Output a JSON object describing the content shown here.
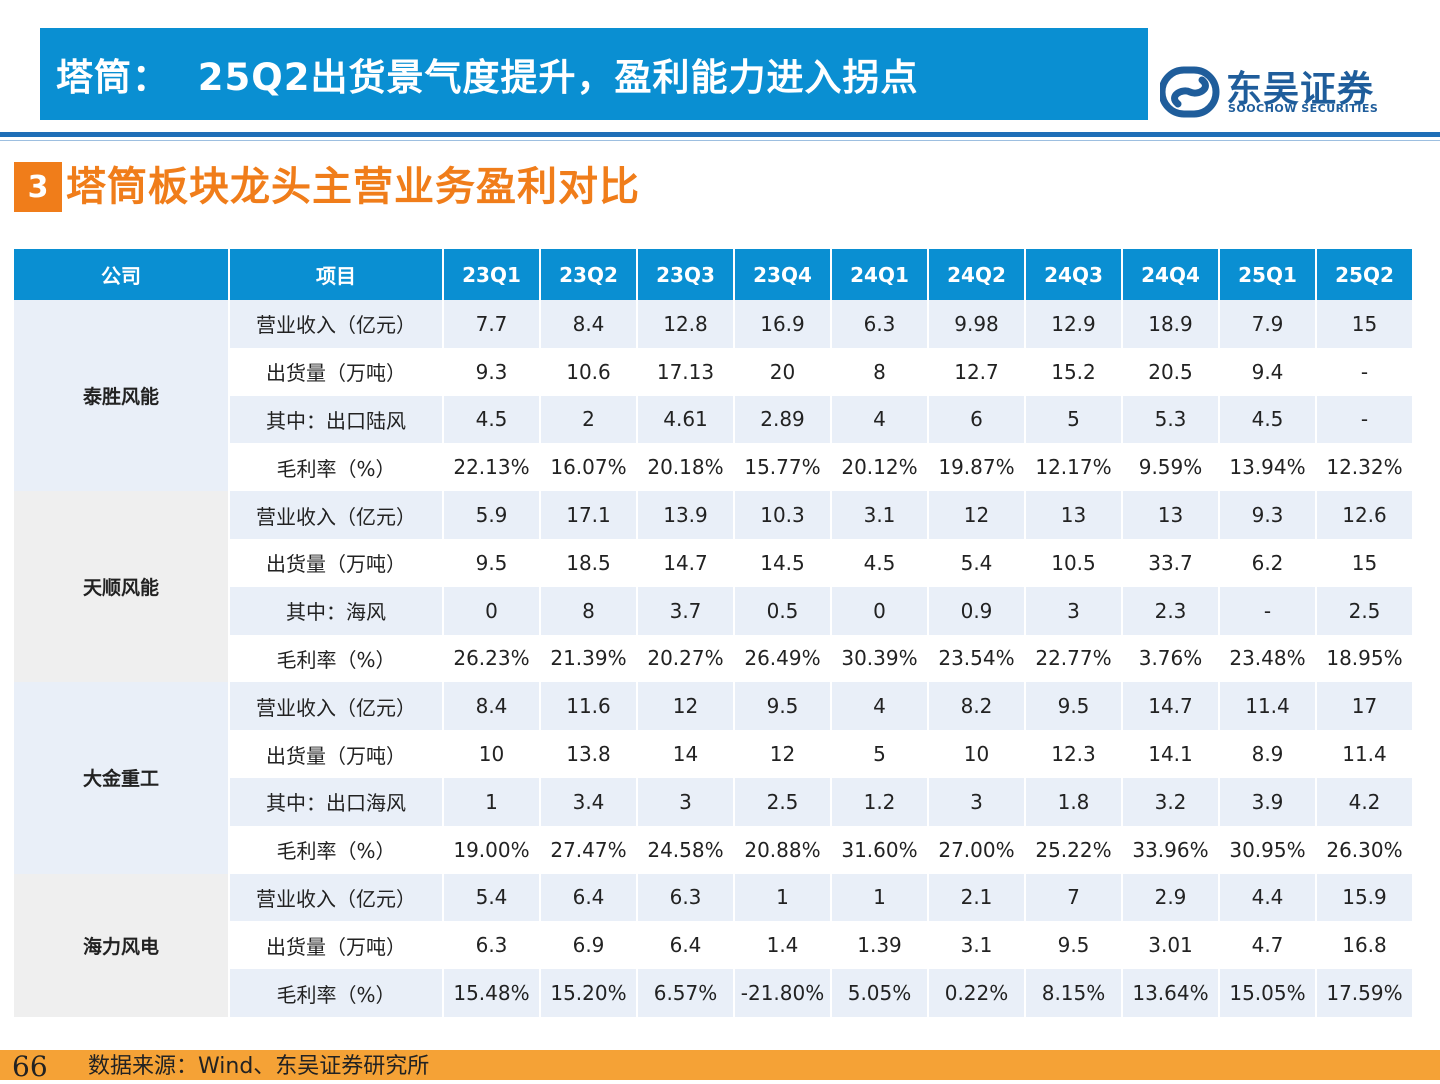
{
  "header": {
    "title": "塔筒：  25Q2出货景气度提升，盈利能力进入拐点",
    "logo_cn": "东吴证券",
    "logo_en": "SOOCHOW SECURITIES"
  },
  "section": {
    "number": "3",
    "title": "塔筒板块龙头主营业务盈利对比"
  },
  "table": {
    "headers": [
      "公司",
      "项目",
      "23Q1",
      "23Q2",
      "23Q3",
      "23Q4",
      "24Q1",
      "24Q2",
      "24Q3",
      "24Q4",
      "25Q1",
      "25Q2"
    ],
    "groups": [
      {
        "company": "泰胜风能",
        "rows": [
          {
            "item": "营业收入（亿元）",
            "values": [
              "7.7",
              "8.4",
              "12.8",
              "16.9",
              "6.3",
              "9.98",
              "12.9",
              "18.9",
              "7.9",
              "15"
            ]
          },
          {
            "item": "出货量（万吨）",
            "values": [
              "9.3",
              "10.6",
              "17.13",
              "20",
              "8",
              "12.7",
              "15.2",
              "20.5",
              "9.4",
              "-"
            ]
          },
          {
            "item": "其中：出口陆风",
            "values": [
              "4.5",
              "2",
              "4.61",
              "2.89",
              "4",
              "6",
              "5",
              "5.3",
              "4.5",
              "-"
            ]
          },
          {
            "item": "毛利率（%）",
            "values": [
              "22.13%",
              "16.07%",
              "20.18%",
              "15.77%",
              "20.12%",
              "19.87%",
              "12.17%",
              "9.59%",
              "13.94%",
              "12.32%"
            ]
          }
        ]
      },
      {
        "company": "天顺风能",
        "rows": [
          {
            "item": "营业收入（亿元）",
            "values": [
              "5.9",
              "17.1",
              "13.9",
              "10.3",
              "3.1",
              "12",
              "13",
              "13",
              "9.3",
              "12.6"
            ]
          },
          {
            "item": "出货量（万吨）",
            "values": [
              "9.5",
              "18.5",
              "14.7",
              "14.5",
              "4.5",
              "5.4",
              "10.5",
              "33.7",
              "6.2",
              "15"
            ]
          },
          {
            "item": "其中：海风",
            "values": [
              "0",
              "8",
              "3.7",
              "0.5",
              "0",
              "0.9",
              "3",
              "2.3",
              "-",
              "2.5"
            ]
          },
          {
            "item": "毛利率（%）",
            "values": [
              "26.23%",
              "21.39%",
              "20.27%",
              "26.49%",
              "30.39%",
              "23.54%",
              "22.77%",
              "3.76%",
              "23.48%",
              "18.95%"
            ]
          }
        ]
      },
      {
        "company": "大金重工",
        "rows": [
          {
            "item": "营业收入（亿元）",
            "values": [
              "8.4",
              "11.6",
              "12",
              "9.5",
              "4",
              "8.2",
              "9.5",
              "14.7",
              "11.4",
              "17"
            ]
          },
          {
            "item": "出货量（万吨）",
            "values": [
              "10",
              "13.8",
              "14",
              "12",
              "5",
              "10",
              "12.3",
              "14.1",
              "8.9",
              "11.4"
            ]
          },
          {
            "item": "其中：出口海风",
            "values": [
              "1",
              "3.4",
              "3",
              "2.5",
              "1.2",
              "3",
              "1.8",
              "3.2",
              "3.9",
              "4.2"
            ]
          },
          {
            "item": "毛利率（%）",
            "values": [
              "19.00%",
              "27.47%",
              "24.58%",
              "20.88%",
              "31.60%",
              "27.00%",
              "25.22%",
              "33.96%",
              "30.95%",
              "26.30%"
            ]
          }
        ]
      },
      {
        "company": "海力风电",
        "rows": [
          {
            "item": "营业收入（亿元）",
            "values": [
              "5.4",
              "6.4",
              "6.3",
              "1",
              "1",
              "2.1",
              "7",
              "2.9",
              "4.4",
              "15.9"
            ]
          },
          {
            "item": "出货量（万吨）",
            "values": [
              "6.3",
              "6.9",
              "6.4",
              "1.4",
              "1.39",
              "3.1",
              "9.5",
              "3.01",
              "4.7",
              "16.8"
            ]
          },
          {
            "item": "毛利率（%）",
            "values": [
              "15.48%",
              "15.20%",
              "6.57%",
              "-21.80%",
              "5.05%",
              "0.22%",
              "8.15%",
              "13.64%",
              "15.05%",
              "17.59%"
            ]
          }
        ]
      }
    ]
  },
  "footer": {
    "page_number": "66",
    "source": "数据来源：Wind、东吴证券研究所"
  },
  "colors": {
    "header_blue": "#0a8fd2",
    "accent_orange": "#f07d1a",
    "footer_orange": "#f5a236",
    "row_shade": "#e9eff8"
  }
}
